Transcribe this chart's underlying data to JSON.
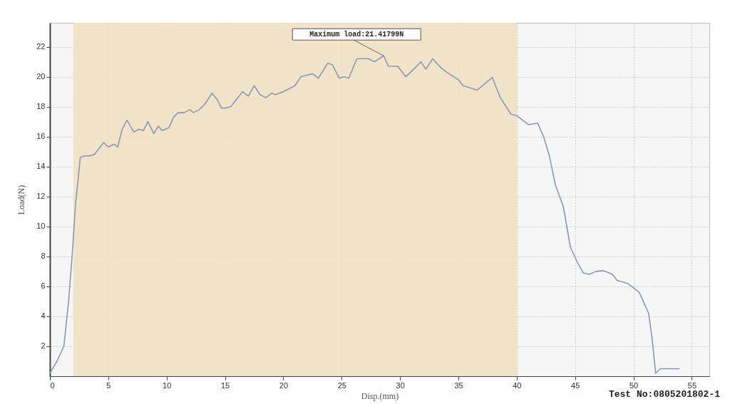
{
  "chart_data": {
    "type": "line",
    "xlabel": "Disp.(mm)",
    "ylabel": "Load(N)",
    "xlim": [
      0,
      56.5
    ],
    "ylim": [
      0,
      23.6
    ],
    "xticks": [
      0,
      5,
      10,
      15,
      20,
      25,
      30,
      35,
      40,
      45,
      50,
      55
    ],
    "yticks": [
      2,
      4,
      6,
      8,
      10,
      12,
      14,
      16,
      18,
      20,
      22
    ],
    "grid": true,
    "line_style": "solid",
    "bands": [
      {
        "axis": "x",
        "from": 2,
        "to": 40,
        "color": "#f2e2c4"
      }
    ],
    "annotations": [
      {
        "text": "Maximum load:21.41799N",
        "x": 28.6,
        "y": 21.4
      },
      "Test No:0805201802-1"
    ],
    "series": [
      {
        "color": "#8a98b8",
        "x": [
          0,
          0.6,
          1.2,
          1.6,
          1.9,
          2.2,
          2.4,
          2.6,
          2.9,
          3.3,
          3.8,
          4.2,
          4.6,
          5,
          5.5,
          5.8,
          6.2,
          6.6,
          7.2,
          7.6,
          8,
          8.4,
          8.9,
          9.3,
          9.6,
          10.2,
          10.6,
          11,
          11.5,
          12,
          12.3,
          12.8,
          13.3,
          13.9,
          14.4,
          14.7,
          15,
          15.5,
          16,
          16.5,
          17,
          17.5,
          18,
          18.5,
          19,
          19.3,
          20,
          21,
          21.5,
          22.5,
          23,
          23.8,
          24.2,
          24.8,
          25.2,
          25.6,
          26.3,
          26.8,
          27.3,
          27.8,
          28.6,
          29,
          29.8,
          30.5,
          31.3,
          31.8,
          32.2,
          32.8,
          33.5,
          34,
          35,
          35.4,
          36.6,
          37.9,
          38.6,
          39.5,
          40,
          41,
          41.8,
          42.3,
          42.8,
          43.3,
          44,
          44.6,
          45.2,
          45.7,
          46.2,
          46.8,
          47.4,
          48.2,
          48.6,
          49.5,
          50.5,
          51.3,
          51.6,
          51.9,
          52.3,
          53.9
        ],
        "values": [
          0.2,
          1,
          2,
          5,
          8,
          11.5,
          13,
          14.6,
          14.7,
          14.7,
          14.8,
          15.2,
          15.6,
          15.3,
          15.5,
          15.3,
          16.5,
          17.1,
          16.3,
          16.5,
          16.4,
          17,
          16.2,
          16.7,
          16.4,
          16.6,
          17.3,
          17.6,
          17.6,
          17.8,
          17.6,
          17.8,
          18.2,
          18.9,
          18.4,
          17.9,
          17.9,
          18,
          18.5,
          19,
          18.7,
          19.4,
          18.8,
          18.6,
          18.9,
          18.8,
          19,
          19.4,
          20,
          20.2,
          19.9,
          20.9,
          20.8,
          19.9,
          20,
          19.9,
          21.2,
          21.2,
          21.2,
          21,
          21.4,
          20.7,
          20.7,
          20,
          20.6,
          21,
          20.5,
          21.2,
          20.6,
          20.3,
          19.8,
          19.4,
          19.1,
          19.95,
          18.6,
          17.5,
          17.4,
          16.8,
          16.9,
          16,
          14.7,
          12.8,
          11.3,
          8.6,
          7.6,
          6.9,
          6.8,
          7,
          7.05,
          6.8,
          6.4,
          6.2,
          5.6,
          4.2,
          2.5,
          0.2,
          0.5,
          0.5
        ]
      }
    ]
  }
}
